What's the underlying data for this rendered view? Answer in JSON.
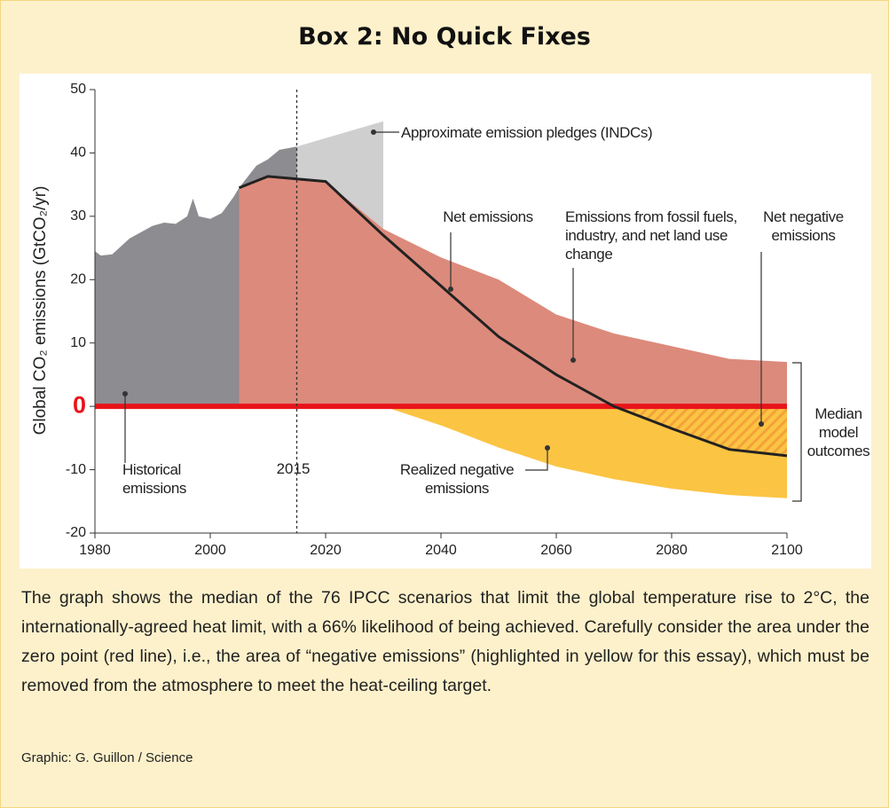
{
  "title": "Box 2: No Quick Fixes",
  "chart_data": {
    "type": "area",
    "y_label": "Global CO₂ emissions (GtCO₂/yr)",
    "xlim": [
      1980,
      2100
    ],
    "xticks": [
      1980,
      2000,
      2020,
      2040,
      2060,
      2080,
      2100
    ],
    "ylim": [
      -20,
      50
    ],
    "yticks": [
      -20,
      -10,
      0,
      10,
      20,
      30,
      40,
      50
    ],
    "vline": 2015,
    "series": [
      {
        "name": "Historical emissions",
        "kind": "area",
        "color": "#8d8c91",
        "x": [
          1980,
          1981,
          1983,
          1986,
          1990,
          1992,
          1994,
          1996,
          1997,
          1998,
          2000,
          2002,
          2004,
          2005,
          2008,
          2010,
          2012,
          2015
        ],
        "values": [
          24.5,
          23.8,
          24,
          26.5,
          28.5,
          29,
          28.8,
          30,
          32.8,
          30,
          29.6,
          30.5,
          33,
          34.5,
          38,
          39,
          40.5,
          41
        ]
      },
      {
        "name": "Approximate emission pledges (INDCs)",
        "kind": "area",
        "color": "#cfcfd0",
        "x": [
          2015,
          2030
        ],
        "values": [
          41,
          45
        ]
      },
      {
        "name": "Emissions from fossil fuels, industry, and net land use change",
        "kind": "area",
        "color": "#dc8a7b",
        "x": [
          2005,
          2010,
          2020,
          2030,
          2040,
          2050,
          2060,
          2070,
          2080,
          2090,
          2100
        ],
        "values": [
          34.5,
          36.2,
          35.5,
          28,
          23.5,
          20,
          14.5,
          11.5,
          9.5,
          7.5,
          7
        ]
      },
      {
        "name": "Realized negative emissions",
        "kind": "area",
        "color": "#fbc443",
        "x": [
          2030,
          2040,
          2050,
          2060,
          2070,
          2080,
          2090,
          2100
        ],
        "values": [
          0,
          -3,
          -6.5,
          -9.5,
          -11.5,
          -13,
          -14,
          -14.5
        ]
      },
      {
        "name": "Net emissions",
        "kind": "line",
        "color": "#222222",
        "x": [
          2005,
          2010,
          2020,
          2030,
          2040,
          2050,
          2060,
          2070,
          2080,
          2090,
          2100
        ],
        "values": [
          34.5,
          36.3,
          35.5,
          27,
          19,
          11,
          5,
          0,
          -3.5,
          -6.8,
          -7.8
        ]
      }
    ],
    "annotations": [
      "Net negative emissions",
      "Median model outcomes"
    ]
  },
  "caption": "The graph shows the median of the 76 IPCC scenarios that limit the global temperature rise to 2°C, the internationally-agreed heat limit, with a 66% likelihood of being achieved. Carefully consider the area under the zero point (red line), i.e., the area of “negative emissions” (highlighted in yellow for this essay), which must be removed from the atmosphere to meet the heat-ceiling target.",
  "credit": "Graphic: G. Guillon / Science"
}
